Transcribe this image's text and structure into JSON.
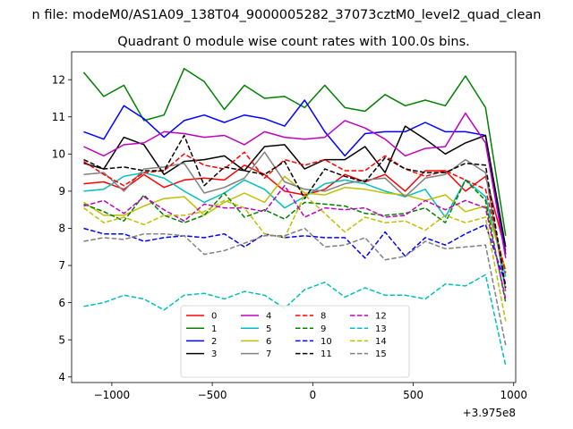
{
  "chart_data": {
    "type": "line",
    "suptitle": "n file: modeM0/AS1A09_138T04_9000005282_37073cztM0_level2_quad_clean",
    "title": "Quadrant 0 module wise count rates with 100.0s bins.",
    "xlabel": "",
    "ylabel": "",
    "x_offset_label": "+3.975e8",
    "xlim": [
      -1200,
      1010
    ],
    "ylim": [
      3.85,
      12.75
    ],
    "xticks": [
      -1000,
      -500,
      0,
      500,
      1000
    ],
    "xtick_labels": [
      "−1000",
      "−500",
      "0",
      "500",
      "1000"
    ],
    "yticks": [
      4,
      5,
      6,
      7,
      8,
      9,
      10,
      11,
      12
    ],
    "yticklabels": [
      "4",
      "5",
      "6",
      "7",
      "8",
      "9",
      "10",
      "11",
      "12"
    ],
    "grid": false,
    "legend": {
      "placement": "bottom-center",
      "ncol": 4
    },
    "x": [
      -1140,
      -1040,
      -940,
      -840,
      -740,
      -640,
      -540,
      -440,
      -340,
      -240,
      -140,
      -40,
      60,
      160,
      260,
      360,
      460,
      560,
      660,
      760,
      860,
      960
    ],
    "series": [
      {
        "name": "0",
        "color": "#ff0000",
        "dash": "solid",
        "values": [
          9.2,
          9.25,
          9.05,
          9.45,
          9.1,
          9.3,
          9.35,
          9.3,
          9.7,
          9.45,
          9.0,
          8.9,
          9.05,
          9.45,
          9.25,
          9.45,
          9.0,
          9.55,
          9.55,
          9.0,
          9.4,
          7.4
        ]
      },
      {
        "name": "1",
        "color": "#008000",
        "dash": "solid",
        "values": [
          12.2,
          11.55,
          11.85,
          10.9,
          11.05,
          12.3,
          11.95,
          11.2,
          11.85,
          11.5,
          11.55,
          11.25,
          11.85,
          11.25,
          11.15,
          11.6,
          11.3,
          11.45,
          11.3,
          12.1,
          11.25,
          7.8
        ]
      },
      {
        "name": "2",
        "color": "#0000ff",
        "dash": "solid",
        "values": [
          10.6,
          10.4,
          11.3,
          10.95,
          10.45,
          10.9,
          11.05,
          10.85,
          11.05,
          10.95,
          10.75,
          11.45,
          10.6,
          9.95,
          10.55,
          10.6,
          10.6,
          10.85,
          10.6,
          10.6,
          10.5,
          7.3
        ]
      },
      {
        "name": "3",
        "color": "#000000",
        "dash": "solid",
        "values": [
          9.75,
          9.6,
          10.45,
          10.25,
          9.45,
          9.8,
          9.85,
          9.95,
          9.55,
          10.2,
          10.25,
          9.6,
          9.85,
          9.85,
          10.2,
          9.5,
          10.75,
          10.4,
          10.0,
          10.3,
          10.5,
          7.5
        ]
      },
      {
        "name": "4",
        "color": "#bf00bf",
        "dash": "solid",
        "values": [
          10.2,
          9.95,
          10.25,
          10.3,
          10.6,
          10.55,
          10.45,
          10.5,
          10.25,
          10.6,
          10.45,
          10.4,
          10.45,
          10.9,
          10.7,
          10.4,
          9.95,
          10.15,
          10.2,
          11.1,
          10.3,
          7.2
        ]
      },
      {
        "name": "5",
        "color": "#00bfbf",
        "dash": "solid",
        "values": [
          9.0,
          9.05,
          9.4,
          9.5,
          9.35,
          9.0,
          8.7,
          8.95,
          9.3,
          9.05,
          8.55,
          8.85,
          9.2,
          9.3,
          9.2,
          9.0,
          8.85,
          9.05,
          8.3,
          9.3,
          8.85,
          6.7
        ]
      },
      {
        "name": "6",
        "color": "#bfbf00",
        "dash": "solid",
        "values": [
          8.7,
          8.35,
          8.35,
          8.6,
          8.8,
          8.85,
          8.35,
          8.7,
          8.95,
          8.7,
          9.4,
          8.95,
          8.9,
          9.1,
          9.05,
          8.95,
          8.9,
          8.75,
          8.9,
          8.45,
          8.6,
          6.9
        ]
      },
      {
        "name": "7",
        "color": "#808080",
        "dash": "solid",
        "values": [
          9.45,
          9.5,
          9.0,
          9.6,
          9.65,
          9.75,
          8.95,
          9.1,
          9.35,
          10.05,
          9.25,
          9.05,
          9.0,
          9.2,
          9.3,
          9.35,
          8.85,
          9.35,
          9.45,
          9.85,
          9.5,
          6.3
        ]
      },
      {
        "name": "8",
        "color": "#ff0000",
        "dash": "dashed",
        "values": [
          9.8,
          9.45,
          9.15,
          9.5,
          9.55,
          10.0,
          9.7,
          9.6,
          10.05,
          9.35,
          9.85,
          9.7,
          9.85,
          9.55,
          9.55,
          9.95,
          9.6,
          9.4,
          9.55,
          9.3,
          9.05,
          6.8
        ]
      },
      {
        "name": "9",
        "color": "#008000",
        "dash": "dashed",
        "values": [
          8.65,
          8.45,
          8.2,
          8.9,
          8.35,
          8.15,
          8.35,
          8.95,
          8.3,
          8.5,
          8.25,
          8.7,
          8.65,
          8.6,
          8.4,
          8.35,
          8.4,
          8.55,
          8.15,
          9.3,
          8.75,
          6.0
        ]
      },
      {
        "name": "10",
        "color": "#0000ff",
        "dash": "dashed",
        "values": [
          8.0,
          7.85,
          7.85,
          7.65,
          7.75,
          7.8,
          7.75,
          7.85,
          7.5,
          7.85,
          7.75,
          7.8,
          7.75,
          7.75,
          7.2,
          7.9,
          7.25,
          7.75,
          7.55,
          7.85,
          8.1,
          6.5
        ]
      },
      {
        "name": "11",
        "color": "#000000",
        "dash": "dashed",
        "values": [
          9.85,
          9.6,
          9.65,
          9.55,
          9.55,
          10.5,
          9.15,
          9.65,
          9.55,
          9.45,
          9.8,
          8.8,
          9.6,
          9.4,
          9.25,
          9.9,
          9.6,
          9.5,
          9.5,
          9.75,
          9.7,
          6.4
        ]
      },
      {
        "name": "12",
        "color": "#bf00bf",
        "dash": "dashed",
        "values": [
          8.6,
          8.75,
          8.4,
          8.85,
          8.5,
          8.2,
          8.65,
          8.55,
          8.55,
          8.45,
          9.15,
          8.3,
          8.55,
          8.5,
          8.55,
          8.3,
          8.35,
          8.75,
          8.5,
          8.75,
          8.55,
          6.1
        ]
      },
      {
        "name": "13",
        "color": "#00bfbf",
        "dash": "dashed",
        "values": [
          5.9,
          6.0,
          6.2,
          6.1,
          5.8,
          6.2,
          6.25,
          6.1,
          6.3,
          6.2,
          5.85,
          6.35,
          6.55,
          6.15,
          6.4,
          6.2,
          6.2,
          6.1,
          6.5,
          6.45,
          6.75,
          4.3
        ]
      },
      {
        "name": "14",
        "color": "#bfbf00",
        "dash": "dashed",
        "values": [
          8.55,
          8.15,
          8.3,
          8.1,
          8.35,
          8.35,
          8.45,
          8.75,
          8.55,
          7.85,
          7.75,
          8.9,
          8.4,
          7.9,
          8.3,
          8.15,
          8.2,
          7.95,
          8.35,
          8.15,
          8.3,
          5.5
        ]
      },
      {
        "name": "15",
        "color": "#808080",
        "dash": "dashed",
        "values": [
          7.65,
          7.75,
          7.7,
          7.85,
          7.85,
          7.8,
          7.3,
          7.4,
          7.6,
          7.8,
          7.8,
          8.0,
          7.5,
          7.55,
          7.75,
          7.15,
          7.25,
          7.65,
          7.45,
          7.5,
          7.55,
          4.85
        ]
      }
    ]
  }
}
